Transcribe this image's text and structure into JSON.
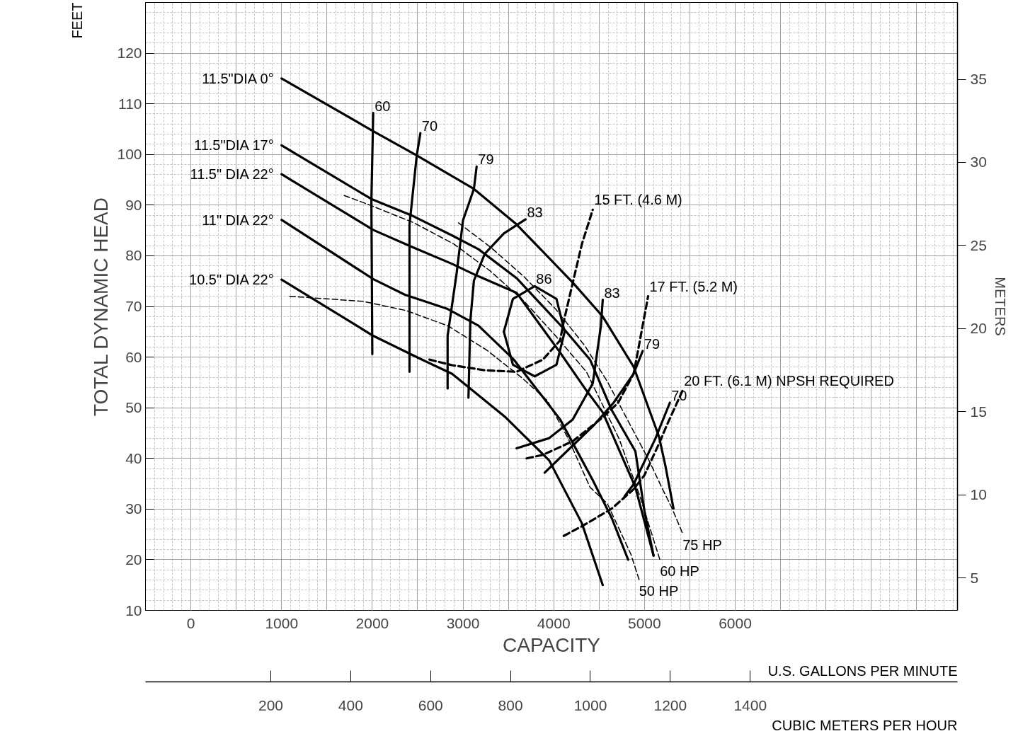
{
  "chart_data": {
    "type": "line",
    "xlabel": "CAPACITY",
    "x2label": "CUBIC METERS PER HOUR",
    "ylabel": "TOTAL DYNAMIC HEAD",
    "y2label": "METERS",
    "xlim": [
      -500,
      8450
    ],
    "xticks": [
      0,
      1000,
      2000,
      3000,
      4000,
      5000,
      6000
    ],
    "ylim": [
      10,
      130
    ],
    "yticks": [
      10,
      20,
      30,
      40,
      50,
      60,
      70,
      80,
      90,
      100,
      110,
      120
    ],
    "y2lim": [
      3.048,
      39.62
    ],
    "y2ticks": [
      5,
      10,
      15,
      20,
      25,
      30,
      35
    ],
    "x2lim": [
      -113.6,
      1918.7
    ],
    "x2ticks": [
      200,
      400,
      600,
      800,
      1000,
      1200,
      1400
    ],
    "grid": true,
    "series": [
      {
        "name": "11.5\"DIA 0°",
        "color": "#000000",
        "line_style": "solid",
        "x": [
          1000,
          2010,
          2490,
          3120,
          3590,
          4210,
          4540,
          4880,
          5160,
          5230,
          5320
        ],
        "values": [
          115,
          104.6,
          99.8,
          93.2,
          86.2,
          74.7,
          68,
          58.1,
          44.3,
          38.6,
          30.1
        ]
      },
      {
        "name": "11.5\"DIA 17°",
        "color": "#000000",
        "line_style": "solid",
        "x": [
          1000,
          1990,
          2430,
          2880,
          3170,
          3590,
          4110,
          4400,
          4640,
          4900,
          5000,
          5100
        ],
        "values": [
          101.8,
          91.2,
          88,
          84,
          81.3,
          75.6,
          65.6,
          59.5,
          49.5,
          41.4,
          29.6,
          20.8
        ]
      },
      {
        "name": "11.5\" DIA 22°",
        "color": "#000000",
        "line_style": "solid",
        "x": [
          1000,
          2010,
          2430,
          2880,
          3150,
          3590,
          4070,
          4360,
          4540,
          4900,
          5100
        ],
        "values": [
          96.1,
          85.1,
          81.8,
          78.4,
          76.1,
          72.7,
          60.9,
          53.4,
          49.1,
          34.3,
          20.8
        ]
      },
      {
        "name": "11\" DIA 22°",
        "color": "#000000",
        "line_style": "solid",
        "x": [
          1000,
          2010,
          2360,
          2830,
          3170,
          3560,
          4070,
          4430,
          4640,
          4820
        ],
        "values": [
          87.1,
          75.4,
          72.3,
          69.5,
          66.2,
          59.5,
          47.7,
          35.7,
          28.2,
          20
        ]
      },
      {
        "name": "10.5\" DIA 22°",
        "color": "#000000",
        "line_style": "solid",
        "x": [
          1000,
          2010,
          2500,
          2880,
          3470,
          3950,
          4310,
          4540
        ],
        "values": [
          75.3,
          64.2,
          59.9,
          56.7,
          48.1,
          39.6,
          27.2,
          15
        ]
      },
      {
        "name": "60",
        "color": "#000000",
        "line_style": "solid",
        "x": [
          2010,
          1990,
          2000
        ],
        "values": [
          108.2,
          90.8,
          60.6
        ]
      },
      {
        "name": "70",
        "color": "#000000",
        "line_style": "solid",
        "x": [
          2530,
          2490,
          2410,
          2410
        ],
        "values": [
          104.2,
          99.8,
          86.1,
          57.1
        ]
      },
      {
        "name": "79",
        "color": "#000000",
        "line_style": "solid",
        "x": [
          3150,
          3120,
          3000,
          2930,
          2830,
          2830
        ],
        "values": [
          97.6,
          93.2,
          87,
          76.6,
          64.2,
          53.8
        ]
      },
      {
        "name": "83",
        "color": "#000000",
        "line_style": "solid",
        "x": [
          3690,
          3450,
          3240,
          3120,
          3080,
          3060
        ],
        "values": [
          87.2,
          84.4,
          80.4,
          75.1,
          67,
          52
        ]
      },
      {
        "name": "86",
        "color": "#000000",
        "line_style": "solid",
        "x": [
          3450,
          3550,
          3790,
          4030,
          4120
        ],
        "values": [
          65,
          71.5,
          74,
          71.5,
          65
        ]
      },
      {
        "color": "#000000",
        "line_style": "solid",
        "x": [
          3450,
          3550,
          3790,
          4030,
          4120
        ],
        "values": [
          65,
          58.5,
          56.2,
          58.5,
          65
        ]
      },
      {
        "name": "83",
        "color": "#000000",
        "line_style": "solid",
        "x": [
          4540,
          4520,
          4430,
          4210,
          3950,
          3590
        ],
        "values": [
          71.3,
          66.2,
          54.8,
          47.7,
          44,
          42
        ]
      },
      {
        "name": "79",
        "color": "#000000",
        "line_style": "solid",
        "x": [
          4980,
          4880,
          4660,
          4450,
          4230,
          3900
        ],
        "values": [
          61.2,
          56.7,
          51,
          46.7,
          42.9,
          37.2
        ]
      },
      {
        "name": "70",
        "color": "#000000",
        "line_style": "solid",
        "x": [
          5280,
          5120,
          4880,
          4780
        ],
        "values": [
          51,
          43.9,
          34.9,
          32.5
        ]
      },
      {
        "name": "15 FT. (4.6 M)",
        "color": "#000000",
        "line_style": "dashed",
        "x": [
          2630,
          2880,
          3240,
          3590,
          3880,
          4070,
          4110,
          4210,
          4310,
          4430
        ],
        "values": [
          59.5,
          58.4,
          57.4,
          57.1,
          59.5,
          63.3,
          67,
          74.7,
          82.3,
          89.1
        ]
      },
      {
        "name": "17 FT. (5.2 M)",
        "color": "#000000",
        "line_style": "dashed",
        "x": [
          3700,
          3880,
          4210,
          4540,
          4710,
          4880,
          4930,
          5040
        ],
        "values": [
          40,
          40.7,
          43.4,
          48.1,
          51,
          56.7,
          61.4,
          72
        ]
      },
      {
        "name": "20 FT. (6.1 M) NPSH REQUIRED",
        "color": "#000000",
        "line_style": "dashed",
        "x": [
          4110,
          4330,
          4640,
          4880,
          5000,
          5160,
          5250,
          5420
        ],
        "values": [
          24.7,
          26.8,
          30.1,
          33.9,
          36.7,
          42.9,
          46.7,
          53.4
        ]
      },
      {
        "name": "50 HP",
        "color": "#000000",
        "line_style": "dotted",
        "x": [
          1090,
          1900,
          2370,
          2830,
          3260,
          3650,
          3930,
          4160,
          4400,
          4590,
          4850,
          4940
        ],
        "values": [
          72,
          71,
          69.2,
          66.2,
          61.4,
          55.9,
          51.4,
          43.9,
          34.3,
          31.1,
          21.1,
          16.1
        ]
      },
      {
        "name": "60 HP",
        "color": "#000000",
        "line_style": "dotted",
        "x": [
          1690,
          1960,
          2460,
          2900,
          3300,
          3680,
          4020,
          4360,
          4720,
          4950,
          5170
        ],
        "values": [
          91.9,
          90.1,
          86.5,
          82.3,
          77,
          70.9,
          64.2,
          57.1,
          43.9,
          32.5,
          20
        ]
      },
      {
        "name": "75 HP",
        "color": "#000000",
        "line_style": "dotted",
        "x": [
          2950,
          3310,
          3670,
          4020,
          4340,
          4590,
          4840,
          5050,
          5200,
          5300,
          5420
        ],
        "values": [
          86.5,
          81.6,
          75.9,
          69.5,
          62.3,
          55.2,
          46.7,
          39.6,
          33.9,
          30.3,
          25.2
        ]
      }
    ],
    "annotations": [
      "FEET",
      "U.S. GALLONS PER MINUTE"
    ]
  }
}
